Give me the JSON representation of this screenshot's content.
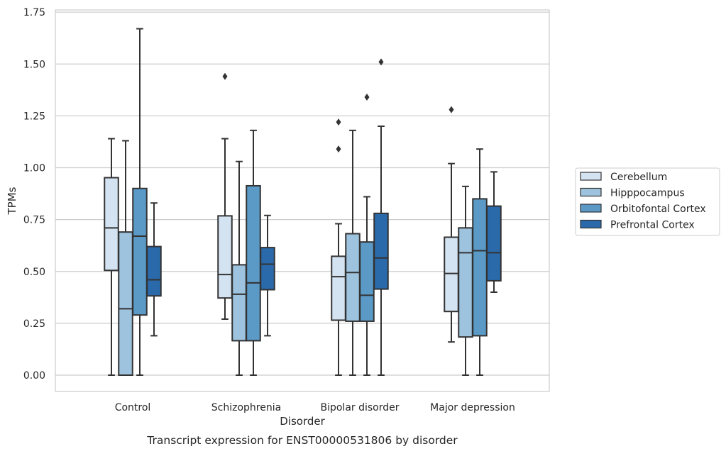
{
  "chart_data": {
    "type": "box",
    "title": "Transcript expression for ENST00000531806 by disorder",
    "xlabel": "Disorder",
    "ylabel": "TPMs",
    "ylim": [
      -0.08,
      1.76
    ],
    "yticks": [
      "0.00",
      "0.25",
      "0.50",
      "0.75",
      "1.00",
      "1.25",
      "1.50",
      "1.75"
    ],
    "ytick_values": [
      0,
      0.25,
      0.5,
      0.75,
      1.0,
      1.25,
      1.5,
      1.75
    ],
    "grid": true,
    "legend_position": "right",
    "categories": [
      "Control",
      "Schizophrenia",
      "Bipolar disorder",
      "Major depression"
    ],
    "series": [
      {
        "name": "Cerebellum",
        "color": "#d4e3f2",
        "boxes": [
          {
            "whisker_low": 0.0,
            "q1": 0.505,
            "median": 0.71,
            "q3": 0.952,
            "whisker_high": 1.14,
            "outliers": []
          },
          {
            "whisker_low": 0.27,
            "q1": 0.372,
            "median": 0.485,
            "q3": 0.768,
            "whisker_high": 1.14,
            "outliers": [
              1.44
            ]
          },
          {
            "whisker_low": 0.0,
            "q1": 0.265,
            "median": 0.475,
            "q3": 0.573,
            "whisker_high": 0.73,
            "outliers": [
              1.09,
              1.22
            ]
          },
          {
            "whisker_low": 0.16,
            "q1": 0.307,
            "median": 0.49,
            "q3": 0.665,
            "whisker_high": 1.02,
            "outliers": [
              1.28
            ]
          }
        ]
      },
      {
        "name": "Hipppocampus",
        "color": "#9dc3de",
        "boxes": [
          {
            "whisker_low": 0.0,
            "q1": 0.0,
            "median": 0.32,
            "q3": 0.69,
            "whisker_high": 1.13,
            "outliers": []
          },
          {
            "whisker_low": 0.0,
            "q1": 0.166,
            "median": 0.39,
            "q3": 0.532,
            "whisker_high": 1.03,
            "outliers": []
          },
          {
            "whisker_low": 0.0,
            "q1": 0.26,
            "median": 0.495,
            "q3": 0.682,
            "whisker_high": 1.18,
            "outliers": []
          },
          {
            "whisker_low": 0.0,
            "q1": 0.184,
            "median": 0.59,
            "q3": 0.71,
            "whisker_high": 0.91,
            "outliers": []
          }
        ]
      },
      {
        "name": "Orbitofontal Cortex",
        "color": "#5b9ac7",
        "boxes": [
          {
            "whisker_low": 0.0,
            "q1": 0.29,
            "median": 0.67,
            "q3": 0.9,
            "whisker_high": 1.67,
            "outliers": []
          },
          {
            "whisker_low": 0.0,
            "q1": 0.166,
            "median": 0.445,
            "q3": 0.913,
            "whisker_high": 1.18,
            "outliers": []
          },
          {
            "whisker_low": 0.0,
            "q1": 0.26,
            "median": 0.385,
            "q3": 0.642,
            "whisker_high": 0.86,
            "outliers": [
              1.34
            ]
          },
          {
            "whisker_low": 0.0,
            "q1": 0.19,
            "median": 0.6,
            "q3": 0.85,
            "whisker_high": 1.09,
            "outliers": []
          }
        ]
      },
      {
        "name": "Prefrontal Cortex",
        "color": "#2a6aaa",
        "boxes": [
          {
            "whisker_low": 0.19,
            "q1": 0.382,
            "median": 0.46,
            "q3": 0.62,
            "whisker_high": 0.83,
            "outliers": []
          },
          {
            "whisker_low": 0.19,
            "q1": 0.412,
            "median": 0.535,
            "q3": 0.615,
            "whisker_high": 0.77,
            "outliers": []
          },
          {
            "whisker_low": 0.0,
            "q1": 0.415,
            "median": 0.565,
            "q3": 0.78,
            "whisker_high": 1.2,
            "outliers": [
              1.51
            ]
          },
          {
            "whisker_low": 0.4,
            "q1": 0.455,
            "median": 0.59,
            "q3": 0.815,
            "whisker_high": 0.98,
            "outliers": []
          }
        ]
      }
    ]
  }
}
